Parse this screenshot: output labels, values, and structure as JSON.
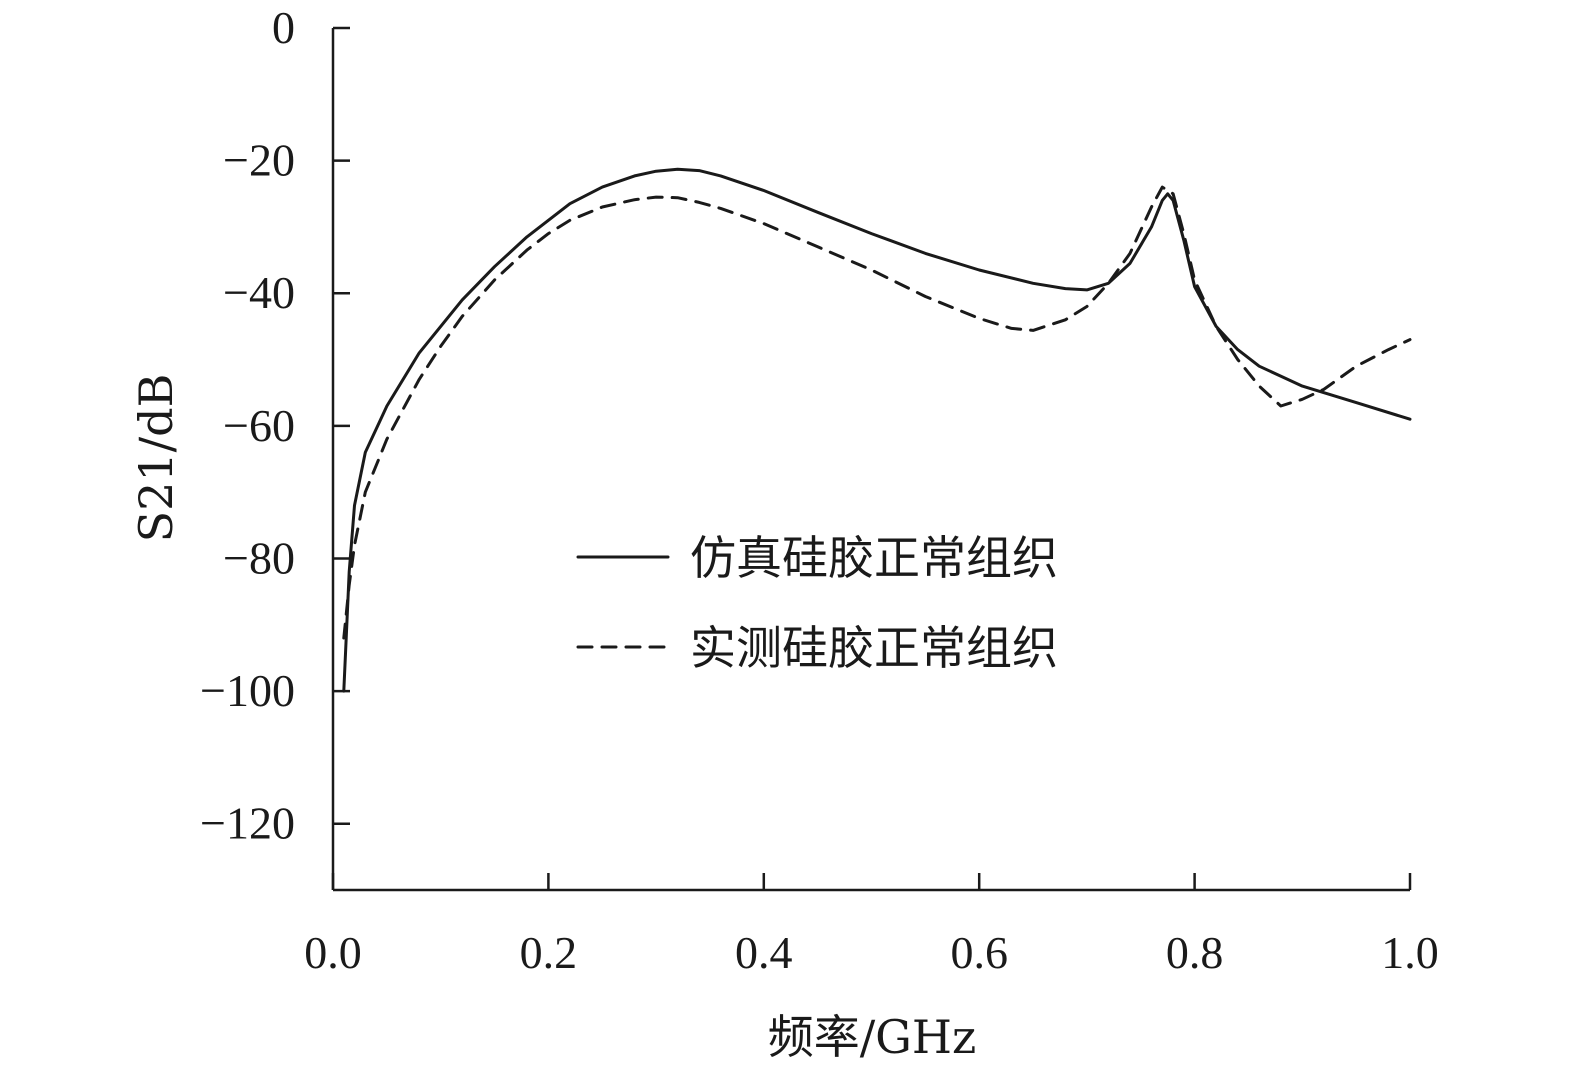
{
  "chart_data": {
    "type": "line",
    "xlabel": "频率/GHz",
    "ylabel": "S21/dB",
    "xlim": [
      0.0,
      1.0
    ],
    "ylim": [
      -130,
      0
    ],
    "x_ticks": [
      0.0,
      0.2,
      0.4,
      0.6,
      0.8,
      1.0
    ],
    "x_tick_labels": [
      "0.0",
      "0.2",
      "0.4",
      "0.6",
      "0.8",
      "1.0"
    ],
    "y_ticks": [
      0,
      -20,
      -40,
      -60,
      -80,
      -100,
      -120
    ],
    "y_tick_labels": [
      "0",
      "−20",
      "−40",
      "−60",
      "−80",
      "−100",
      "−120"
    ],
    "grid": false,
    "legend_position": "center",
    "series": [
      {
        "name": "仿真硅胶正常组织",
        "style": "solid",
        "color": "#1a1a1a",
        "x": [
          0.01,
          0.015,
          0.02,
          0.03,
          0.05,
          0.08,
          0.1,
          0.12,
          0.15,
          0.18,
          0.2,
          0.22,
          0.25,
          0.28,
          0.3,
          0.32,
          0.34,
          0.36,
          0.4,
          0.45,
          0.5,
          0.55,
          0.6,
          0.65,
          0.68,
          0.7,
          0.72,
          0.74,
          0.76,
          0.77,
          0.775,
          0.78,
          0.79,
          0.8,
          0.82,
          0.84,
          0.86,
          0.9,
          0.95,
          1.0
        ],
        "y": [
          -100,
          -82,
          -72,
          -64,
          -57,
          -49,
          -45,
          -41,
          -36,
          -31.5,
          -29,
          -26.5,
          -24,
          -22.3,
          -21.6,
          -21.3,
          -21.5,
          -22.3,
          -24.5,
          -27.8,
          -31,
          -34,
          -36.5,
          -38.5,
          -39.3,
          -39.5,
          -38.5,
          -35.5,
          -30,
          -26,
          -25,
          -26,
          -32,
          -39,
          -45,
          -48.5,
          -51,
          -54,
          -56.5,
          -59
        ]
      },
      {
        "name": "实测硅胶正常组织",
        "style": "dashed",
        "color": "#1a1a1a",
        "x": [
          0.01,
          0.015,
          0.02,
          0.03,
          0.05,
          0.08,
          0.1,
          0.12,
          0.15,
          0.18,
          0.2,
          0.22,
          0.25,
          0.28,
          0.3,
          0.32,
          0.34,
          0.36,
          0.4,
          0.45,
          0.5,
          0.55,
          0.6,
          0.63,
          0.65,
          0.68,
          0.7,
          0.72,
          0.74,
          0.76,
          0.77,
          0.78,
          0.79,
          0.8,
          0.82,
          0.84,
          0.86,
          0.88,
          0.9,
          0.92,
          0.95,
          0.98,
          1.0
        ],
        "y": [
          -92,
          -84,
          -78,
          -70,
          -62,
          -53,
          -48,
          -43.5,
          -38,
          -33.5,
          -31,
          -29,
          -27,
          -25.9,
          -25.5,
          -25.6,
          -26.3,
          -27.2,
          -29.5,
          -33,
          -36.5,
          -40.5,
          -43.8,
          -45.3,
          -45.6,
          -44,
          -42,
          -38.5,
          -34,
          -27,
          -24,
          -25,
          -31,
          -38,
          -45,
          -50,
          -54,
          -57,
          -56,
          -54.5,
          -51,
          -48.5,
          -47
        ]
      }
    ]
  }
}
